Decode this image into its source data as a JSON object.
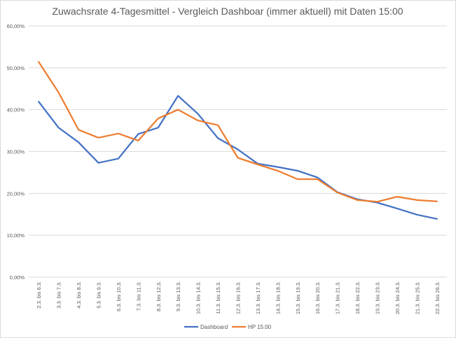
{
  "chart_data": {
    "type": "line",
    "title": "Zuwachsrate 4-Tagesmittel - Vergleich Dashboar (immer aktuell) mit Daten 15:00",
    "xlabel": "",
    "ylabel": "",
    "ylim": [
      0,
      0.6
    ],
    "yticks": [
      "0,00%",
      "10,00%",
      "20,00%",
      "30,00%",
      "40,00%",
      "50,00%",
      "60,00%"
    ],
    "categories": [
      "2.3. bis 6.3.",
      "3.3. bis 7.3.",
      "4.3. bis 8.3.",
      "5.3. bis 9.3.",
      "6.3. bis 10.3.",
      "7.3. bis 11.3.",
      "8.3. bis 12.3.",
      "9.3. bis 13.3.",
      "10.3. bis 14.3.",
      "11.3. bis 15.3.",
      "12.3. bis 16.3.",
      "13.3. bis 17.3.",
      "14.3. bis 18.3.",
      "15.3. bis 19.3.",
      "16.3. bis 20.3.",
      "17.3. bis 21.3.",
      "18.3. bis 22.3.",
      "19.3. bis 23.3.",
      "20.3. bis 24.3.",
      "21.3. bis 25.3.",
      "22.3. bis 26.3."
    ],
    "grid": true,
    "legend": "bottom",
    "series": [
      {
        "name": "Dashboard",
        "color": "#4472c4",
        "values": [
          0.419,
          0.357,
          0.322,
          0.273,
          0.283,
          0.342,
          0.357,
          0.433,
          0.39,
          0.332,
          0.305,
          0.271,
          0.263,
          0.254,
          0.238,
          0.203,
          0.186,
          0.178,
          0.164,
          0.149,
          0.139
        ]
      },
      {
        "name": "HP 15:00",
        "color": "#ed7d31",
        "values": [
          0.514,
          0.441,
          0.352,
          0.333,
          0.343,
          0.326,
          0.379,
          0.4,
          0.374,
          0.363,
          0.285,
          0.269,
          0.254,
          0.234,
          0.234,
          0.202,
          0.184,
          0.18,
          0.192,
          0.184,
          0.181
        ]
      }
    ]
  }
}
